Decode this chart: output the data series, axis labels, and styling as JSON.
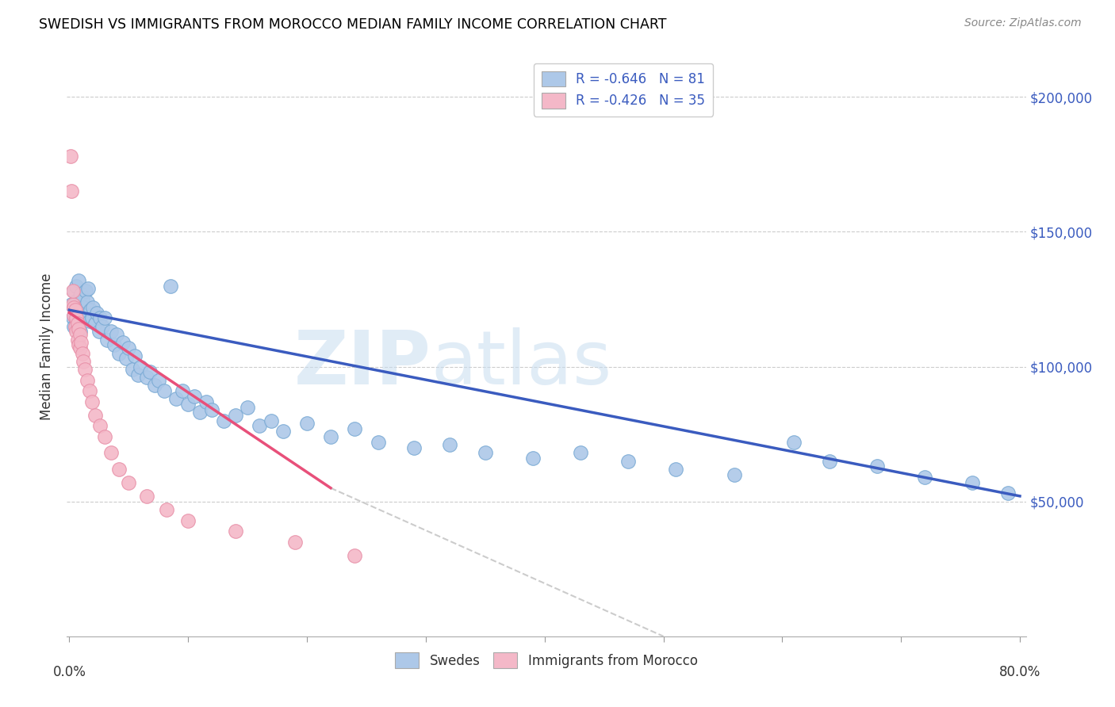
{
  "title": "SWEDISH VS IMMIGRANTS FROM MOROCCO MEDIAN FAMILY INCOME CORRELATION CHART",
  "source": "Source: ZipAtlas.com",
  "ylabel": "Median Family Income",
  "ytick_labels": [
    "$50,000",
    "$100,000",
    "$150,000",
    "$200,000"
  ],
  "ytick_values": [
    50000,
    100000,
    150000,
    200000
  ],
  "ylim": [
    0,
    215000
  ],
  "xlim": [
    -0.002,
    0.805
  ],
  "legend_line1": "R = -0.646   N = 81",
  "legend_line2": "R = -0.426   N = 35",
  "blue_scatter_color": "#adc8e8",
  "pink_scatter_color": "#f4b8c8",
  "blue_line_color": "#3a5bbf",
  "pink_line_color": "#e8507a",
  "blue_dot_edge": "#7aaad4",
  "pink_dot_edge": "#e890a8",
  "swedes_x": [
    0.002,
    0.003,
    0.004,
    0.004,
    0.005,
    0.005,
    0.006,
    0.006,
    0.007,
    0.007,
    0.008,
    0.008,
    0.009,
    0.009,
    0.01,
    0.01,
    0.011,
    0.012,
    0.013,
    0.014,
    0.015,
    0.016,
    0.017,
    0.018,
    0.019,
    0.02,
    0.022,
    0.023,
    0.025,
    0.026,
    0.028,
    0.03,
    0.032,
    0.035,
    0.038,
    0.04,
    0.042,
    0.045,
    0.048,
    0.05,
    0.053,
    0.055,
    0.058,
    0.06,
    0.065,
    0.068,
    0.072,
    0.075,
    0.08,
    0.085,
    0.09,
    0.095,
    0.1,
    0.105,
    0.11,
    0.115,
    0.12,
    0.13,
    0.14,
    0.15,
    0.16,
    0.17,
    0.18,
    0.2,
    0.22,
    0.24,
    0.26,
    0.29,
    0.32,
    0.35,
    0.39,
    0.43,
    0.47,
    0.51,
    0.56,
    0.61,
    0.64,
    0.68,
    0.72,
    0.76,
    0.79
  ],
  "swedes_y": [
    123000,
    118000,
    128000,
    115000,
    124000,
    119000,
    130000,
    116000,
    125000,
    120000,
    132000,
    118000,
    126000,
    113000,
    127000,
    121000,
    125000,
    122000,
    119000,
    128000,
    124000,
    129000,
    117000,
    121000,
    118000,
    122000,
    116000,
    120000,
    113000,
    118000,
    115000,
    118000,
    110000,
    113000,
    108000,
    112000,
    105000,
    109000,
    103000,
    107000,
    99000,
    104000,
    97000,
    100000,
    96000,
    98000,
    93000,
    95000,
    91000,
    130000,
    88000,
    91000,
    86000,
    89000,
    83000,
    87000,
    84000,
    80000,
    82000,
    85000,
    78000,
    80000,
    76000,
    79000,
    74000,
    77000,
    72000,
    70000,
    71000,
    68000,
    66000,
    68000,
    65000,
    62000,
    60000,
    72000,
    65000,
    63000,
    59000,
    57000,
    53000
  ],
  "morocco_x": [
    0.001,
    0.002,
    0.003,
    0.003,
    0.004,
    0.004,
    0.005,
    0.005,
    0.006,
    0.006,
    0.007,
    0.007,
    0.008,
    0.008,
    0.009,
    0.009,
    0.01,
    0.011,
    0.012,
    0.013,
    0.015,
    0.017,
    0.019,
    0.022,
    0.026,
    0.03,
    0.035,
    0.042,
    0.05,
    0.065,
    0.082,
    0.1,
    0.14,
    0.19,
    0.24
  ],
  "morocco_y": [
    178000,
    165000,
    123000,
    128000,
    122000,
    119000,
    121000,
    115000,
    118000,
    113000,
    116000,
    110000,
    114000,
    108000,
    112000,
    107000,
    109000,
    105000,
    102000,
    99000,
    95000,
    91000,
    87000,
    82000,
    78000,
    74000,
    68000,
    62000,
    57000,
    52000,
    47000,
    43000,
    39000,
    35000,
    30000
  ],
  "blue_line_x0": 0.0,
  "blue_line_y0": 121000,
  "blue_line_x1": 0.8,
  "blue_line_y1": 52000,
  "pink_line_solid_x0": 0.0,
  "pink_line_solid_y0": 120000,
  "pink_line_solid_x1": 0.22,
  "pink_line_solid_y1": 55000,
  "pink_line_dash_x1": 0.5,
  "pink_line_dash_y1": 0
}
